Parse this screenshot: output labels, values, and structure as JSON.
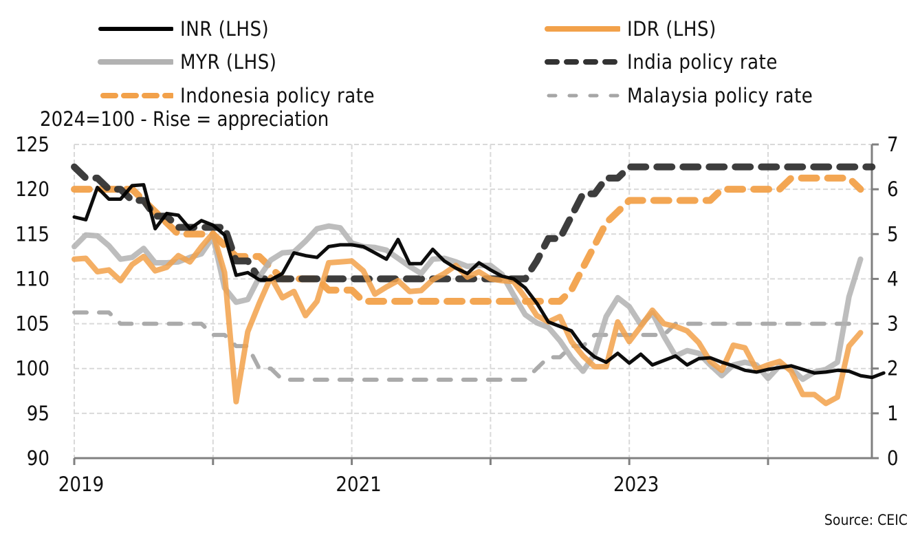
{
  "chart_data": {
    "type": "line",
    "subtitle": "2024=100 - Rise = appreciation",
    "source": "Source: CEIC",
    "x_start": "2019-01",
    "x_frequency": "monthly",
    "x_ticks": [
      "2019",
      "2020",
      "2021",
      "2022",
      "2023",
      "2024"
    ],
    "x_tick_labels": [
      "2019",
      "",
      "2021",
      "",
      "2023",
      ""
    ],
    "y_left": {
      "min": 90,
      "max": 125,
      "ticks": [
        90,
        95,
        100,
        105,
        110,
        115,
        120,
        125
      ]
    },
    "y_right": {
      "min": 0,
      "max": 7,
      "ticks": [
        0,
        1,
        2,
        3,
        4,
        5,
        6,
        7
      ]
    },
    "grid": true,
    "legend_position": "top",
    "series": [
      {
        "name": "INR (LHS)",
        "axis": "left",
        "color": "#000000",
        "style": "solid",
        "values": [
          116.9,
          116.6,
          120.2,
          118.9,
          118.9,
          120.4,
          120.5,
          115.6,
          117.3,
          117.1,
          115.6,
          116.5,
          116.0,
          114.9,
          110.4,
          110.7,
          109.9,
          109.9,
          110.6,
          112.9,
          112.6,
          112.4,
          113.6,
          113.8,
          113.8,
          113.6,
          112.9,
          112.2,
          114.4,
          111.7,
          111.7,
          113.3,
          112.0,
          111.2,
          110.6,
          111.8,
          111.0,
          110.3,
          110.0,
          109.0,
          107.3,
          105.2,
          104.7,
          104.2,
          102.4,
          101.3,
          100.7,
          101.7,
          100.6,
          101.6,
          100.4,
          100.9,
          101.4,
          100.4,
          101.1,
          101.2,
          100.7,
          100.3,
          99.8,
          99.6,
          99.9,
          100.1,
          100.3,
          99.9,
          99.5,
          99.6,
          99.8,
          99.7,
          99.2,
          99.0,
          99.5
        ]
      },
      {
        "name": "IDR (LHS)",
        "axis": "left",
        "color": "#F2A14A",
        "style": "solid",
        "values": [
          112.2,
          112.3,
          110.8,
          111.0,
          109.8,
          111.6,
          112.5,
          110.9,
          111.3,
          112.6,
          111.9,
          113.6,
          115.1,
          110.7,
          96.3,
          104.1,
          107.3,
          110.2,
          107.9,
          108.6,
          105.9,
          107.5,
          111.8,
          111.9,
          112.0,
          110.9,
          108.3,
          109.1,
          109.8,
          108.6,
          108.7,
          109.9,
          110.6,
          111.5,
          110.2,
          110.8,
          110.0,
          109.8,
          109.7,
          107.9,
          105.9,
          105.2,
          105.8,
          103.0,
          101.4,
          100.2,
          100.2,
          105.2,
          103.0,
          104.7,
          106.5,
          105.0,
          104.7,
          104.2,
          102.9,
          100.8,
          99.8,
          102.6,
          102.3,
          99.9,
          100.4,
          100.8,
          99.7,
          97.1,
          97.1,
          96.1,
          96.8,
          102.5,
          104.0
        ]
      },
      {
        "name": "MYR (LHS)",
        "axis": "left",
        "color": "#B2B2B2",
        "style": "solid",
        "values": [
          113.6,
          114.9,
          114.8,
          113.7,
          112.2,
          112.4,
          113.4,
          111.8,
          111.8,
          111.9,
          112.4,
          112.8,
          114.7,
          109.0,
          107.4,
          107.7,
          110.2,
          112.1,
          112.9,
          113.0,
          114.2,
          115.6,
          115.9,
          115.7,
          114.0,
          113.6,
          113.5,
          113.2,
          112.3,
          111.4,
          110.6,
          112.2,
          112.3,
          111.9,
          111.4,
          111.5,
          111.5,
          110.5,
          108.2,
          106.0,
          105.1,
          104.6,
          103.1,
          101.2,
          99.7,
          101.6,
          105.8,
          107.9,
          106.9,
          104.9,
          106.2,
          103.6,
          101.4,
          102.0,
          101.7,
          100.4,
          99.2,
          100.4,
          100.7,
          100.4,
          98.9,
          100.3,
          100.0,
          98.8,
          99.6,
          99.9,
          100.7,
          108.0,
          112.2
        ]
      },
      {
        "name": "India policy rate",
        "axis": "right",
        "color": "#333333",
        "style": "dashed-bold",
        "values": [
          6.5,
          6.25,
          6.25,
          6.0,
          6.0,
          5.75,
          5.75,
          5.4,
          5.4,
          5.15,
          5.15,
          5.15,
          5.15,
          5.15,
          4.4,
          4.4,
          4.0,
          4.0,
          4.0,
          4.0,
          4.0,
          4.0,
          4.0,
          4.0,
          4.0,
          4.0,
          4.0,
          4.0,
          4.0,
          4.0,
          4.0,
          4.0,
          4.0,
          4.0,
          4.0,
          4.0,
          4.0,
          4.0,
          4.0,
          4.0,
          4.4,
          4.9,
          4.9,
          5.4,
          5.9,
          5.9,
          6.25,
          6.25,
          6.5,
          6.5,
          6.5,
          6.5,
          6.5,
          6.5,
          6.5,
          6.5,
          6.5,
          6.5,
          6.5,
          6.5,
          6.5,
          6.5,
          6.5,
          6.5,
          6.5,
          6.5,
          6.5,
          6.5,
          6.5,
          6.5
        ]
      },
      {
        "name": "Indonesia policy rate",
        "axis": "right",
        "color": "#F2A14A",
        "style": "dashed-bold",
        "values": [
          6.0,
          6.0,
          6.0,
          6.0,
          6.0,
          6.0,
          5.75,
          5.5,
          5.25,
          5.0,
          5.0,
          5.0,
          5.0,
          4.75,
          4.5,
          4.5,
          4.5,
          4.25,
          4.0,
          4.0,
          4.0,
          4.0,
          3.75,
          3.75,
          3.75,
          3.5,
          3.5,
          3.5,
          3.5,
          3.5,
          3.5,
          3.5,
          3.5,
          3.5,
          3.5,
          3.5,
          3.5,
          3.5,
          3.5,
          3.5,
          3.5,
          3.5,
          3.5,
          3.75,
          4.25,
          4.75,
          5.25,
          5.5,
          5.75,
          5.75,
          5.75,
          5.75,
          5.75,
          5.75,
          5.75,
          5.75,
          6.0,
          6.0,
          6.0,
          6.0,
          6.0,
          6.0,
          6.25,
          6.25,
          6.25,
          6.25,
          6.25,
          6.25,
          6.0
        ]
      },
      {
        "name": "Malaysia policy rate",
        "axis": "right",
        "color": "#A6A6A6",
        "style": "dashed-thin",
        "values": [
          3.25,
          3.25,
          3.25,
          3.25,
          3.0,
          3.0,
          3.0,
          3.0,
          3.0,
          3.0,
          3.0,
          3.0,
          2.75,
          2.75,
          2.5,
          2.5,
          2.0,
          2.0,
          1.75,
          1.75,
          1.75,
          1.75,
          1.75,
          1.75,
          1.75,
          1.75,
          1.75,
          1.75,
          1.75,
          1.75,
          1.75,
          1.75,
          1.75,
          1.75,
          1.75,
          1.75,
          1.75,
          1.75,
          1.75,
          1.75,
          2.0,
          2.25,
          2.25,
          2.5,
          2.5,
          2.75,
          2.75,
          2.75,
          2.75,
          2.75,
          2.75,
          2.75,
          3.0,
          3.0,
          3.0,
          3.0,
          3.0,
          3.0,
          3.0,
          3.0,
          3.0,
          3.0,
          3.0,
          3.0,
          3.0,
          3.0,
          3.0,
          3.0,
          3.0
        ]
      }
    ]
  },
  "legend": [
    {
      "label": "INR (LHS)"
    },
    {
      "label": "IDR (LHS)"
    },
    {
      "label": "MYR (LHS)"
    },
    {
      "label": "India policy rate"
    },
    {
      "label": "Indonesia policy rate"
    },
    {
      "label": "Malaysia policy rate"
    }
  ]
}
